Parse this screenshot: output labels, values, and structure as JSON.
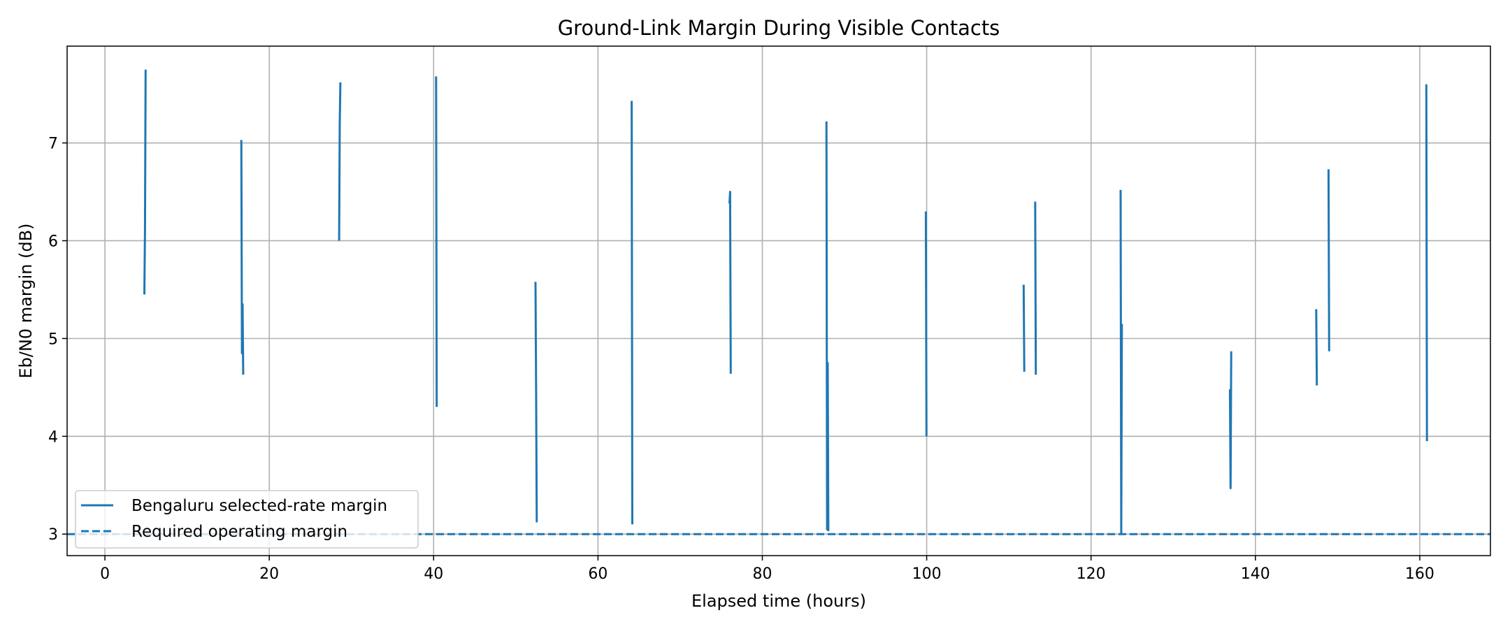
{
  "chart_data": {
    "type": "line",
    "title": "Ground-Link Margin During Visible Contacts",
    "xlabel": "Elapsed time (hours)",
    "ylabel": "Eb/N0 margin (dB)",
    "xlim": [
      -4.6,
      168.6
    ],
    "ylim": [
      2.78,
      7.99
    ],
    "xticks": [
      0,
      20,
      40,
      60,
      80,
      100,
      120,
      140,
      160
    ],
    "yticks": [
      3,
      4,
      5,
      6,
      7
    ],
    "grid": true,
    "legend_position": "lower-left",
    "series": [
      {
        "name": "Bengaluru selected-rate margin",
        "style": "solid",
        "color": "#1f77b4",
        "contacts": [
          {
            "x": 4.8,
            "y": [
              5.45,
              6.1,
              7.75
            ]
          },
          {
            "x": 16.6,
            "y": [
              7.03,
              4.85,
              5.35,
              4.63
            ]
          },
          {
            "x": 28.5,
            "y": [
              6.0,
              7.2,
              7.62
            ]
          },
          {
            "x": 40.3,
            "y": [
              7.68,
              4.3
            ]
          },
          {
            "x": 52.4,
            "y": [
              5.58,
              4.45,
              3.12
            ]
          },
          {
            "x": 64.1,
            "y": [
              7.43,
              3.1
            ]
          },
          {
            "x": 76.0,
            "y": [
              6.38,
              6.5,
              4.64
            ]
          },
          {
            "x": 87.8,
            "y": [
              7.22,
              3.05,
              4.75,
              3.03
            ]
          },
          {
            "x": 99.9,
            "y": [
              6.3,
              4.0
            ]
          },
          {
            "x": 111.8,
            "y": [
              5.55,
              4.66
            ]
          },
          {
            "x": 113.2,
            "y": [
              6.4,
              4.63
            ]
          },
          {
            "x": 123.6,
            "y": [
              6.52,
              3.0,
              5.15
            ]
          },
          {
            "x": 136.9,
            "y": [
              4.48,
              3.47,
              4.87
            ]
          },
          {
            "x": 147.4,
            "y": [
              5.3,
              4.52
            ]
          },
          {
            "x": 148.9,
            "y": [
              6.73,
              4.87
            ]
          },
          {
            "x": 160.8,
            "y": [
              7.6,
              3.95
            ]
          }
        ]
      },
      {
        "name": "Required operating margin",
        "style": "dashed",
        "color": "#1f77b4",
        "value": 3.0
      }
    ]
  }
}
